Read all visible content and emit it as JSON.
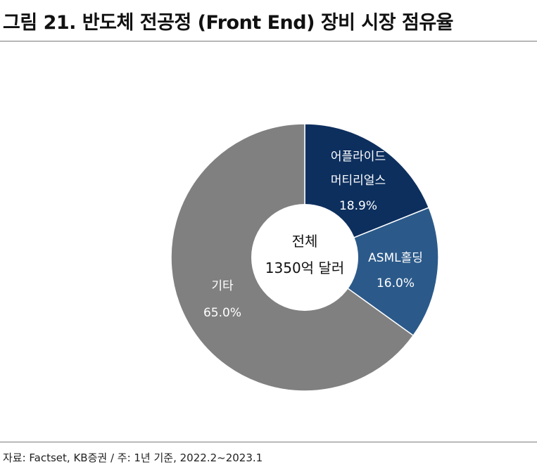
{
  "header": {
    "title": "그림 21. 반도체 전공정 (Front End) 장비 시장 점유율"
  },
  "footer": {
    "source": "자료: Factset, KB증권 / 주: 1년 기준, 2022.2~2023.1"
  },
  "chart_data": {
    "type": "pie",
    "donut": true,
    "center_text": [
      "전체",
      "1350억 달러"
    ],
    "slices": [
      {
        "label_lines": [
          "어플라이드",
          "머티리얼스"
        ],
        "value": 18.9,
        "value_label": "18.9%",
        "color": "#0d2f5e"
      },
      {
        "label_lines": [
          "ASML홀딩"
        ],
        "value": 16.0,
        "value_label": "16.0%",
        "color": "#2b5a8a"
      },
      {
        "label_lines": [
          "기타"
        ],
        "value": 65.0,
        "value_label": "65.0%",
        "color": "#808080"
      }
    ]
  }
}
